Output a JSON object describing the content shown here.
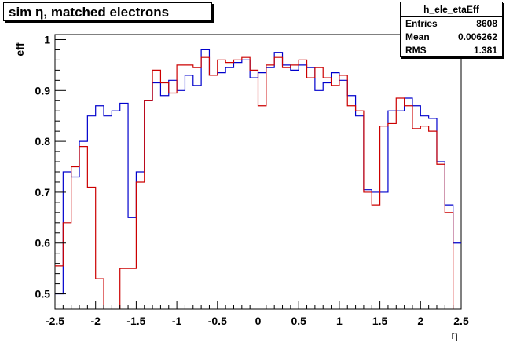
{
  "chart_data": {
    "type": "line",
    "title": "sim η,  matched electrons",
    "xlabel": "η",
    "ylabel": "eff",
    "xlim": [
      -2.5,
      2.5
    ],
    "ylim": [
      0.47,
      1.01
    ],
    "xticks": [
      "-2.5",
      "-2",
      "-1.5",
      "-1",
      "-0.5",
      "0",
      "0.5",
      "1",
      "1.5",
      "2",
      "2.5"
    ],
    "yticks": [
      "0.5",
      "0.6",
      "0.7",
      "0.8",
      "0.9",
      "1"
    ],
    "grid": false,
    "stats": {
      "name": "h_ele_etaEff",
      "rows": [
        {
          "label": "Entries",
          "value": "8608"
        },
        {
          "label": "Mean",
          "value": "0.006262"
        },
        {
          "label": "RMS",
          "value": "1.381"
        }
      ]
    },
    "bin_edges_start": -2.5,
    "bin_width": 0.1,
    "series": [
      {
        "color": "#0000cc",
        "values": [
          0.5,
          0.74,
          0.73,
          0.8,
          0.85,
          0.87,
          0.85,
          0.86,
          0.875,
          0.65,
          0.74,
          0.88,
          0.915,
          0.89,
          0.92,
          0.9,
          0.93,
          0.91,
          0.98,
          0.93,
          0.935,
          0.945,
          0.955,
          0.96,
          0.925,
          0.935,
          0.945,
          0.975,
          0.95,
          0.94,
          0.95,
          0.945,
          0.9,
          0.915,
          0.935,
          0.92,
          0.89,
          0.85,
          0.705,
          0.7,
          0.7,
          0.86,
          0.86,
          0.885,
          0.87,
          0.85,
          0.845,
          0.76,
          0.675,
          0.6
        ]
      },
      {
        "color": "#cc0000",
        "values": [
          0.555,
          0.64,
          0.75,
          0.79,
          0.71,
          0.53,
          0.4,
          0.4,
          0.55,
          0.55,
          0.72,
          0.88,
          0.94,
          0.915,
          0.895,
          0.95,
          0.95,
          0.945,
          0.965,
          0.93,
          0.96,
          0.955,
          0.96,
          0.965,
          0.94,
          0.87,
          0.95,
          0.965,
          0.945,
          0.95,
          0.96,
          0.925,
          0.945,
          0.925,
          0.91,
          0.93,
          0.87,
          0.86,
          0.7,
          0.675,
          0.83,
          0.835,
          0.885,
          0.87,
          0.825,
          0.83,
          0.82,
          0.755,
          0.66,
          0.4
        ]
      }
    ]
  }
}
